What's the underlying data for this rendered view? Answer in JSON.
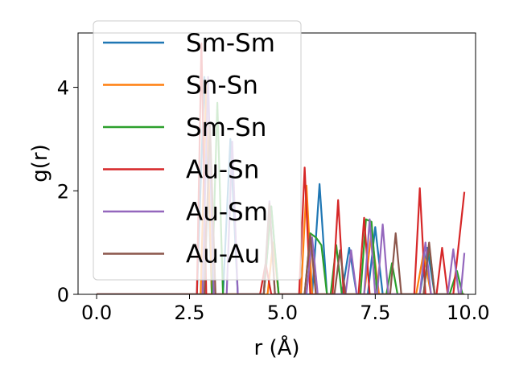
{
  "chart_data": {
    "type": "line",
    "xlabel": "r (Å)",
    "ylabel": "g(r)",
    "xlim": [
      -0.5,
      10.2
    ],
    "ylim": [
      0,
      5.05
    ],
    "xticks": [
      0.0,
      2.5,
      5.0,
      7.5,
      10.0
    ],
    "xtick_labels": [
      "0.0",
      "2.5",
      "5.0",
      "7.5",
      "10.0"
    ],
    "yticks": [
      0,
      2,
      4
    ],
    "ytick_labels": [
      "0",
      "2",
      "4"
    ],
    "grid": false,
    "legend_position": "top-left",
    "series": [
      {
        "name": "Sm-Sm",
        "color": "#1f77b4",
        "points": [
          [
            0,
            0
          ],
          [
            2.7,
            0
          ],
          [
            2.9,
            4.2
          ],
          [
            3.1,
            0
          ],
          [
            3.4,
            0
          ],
          [
            3.6,
            3.0
          ],
          [
            3.8,
            0
          ],
          [
            4.5,
            0
          ],
          [
            4.7,
            1.7
          ],
          [
            4.9,
            0
          ],
          [
            5.8,
            0
          ],
          [
            6.0,
            2.13
          ],
          [
            6.2,
            0
          ],
          [
            6.6,
            0
          ],
          [
            6.8,
            0.9
          ],
          [
            7.0,
            0
          ],
          [
            7.3,
            0
          ],
          [
            7.5,
            1.3
          ],
          [
            7.7,
            0
          ],
          [
            8.7,
            0
          ],
          [
            8.9,
            0.9
          ],
          [
            9.1,
            0
          ],
          [
            9.9,
            0
          ]
        ]
      },
      {
        "name": "Sn-Sn",
        "color": "#ff7f0e",
        "points": [
          [
            0,
            0
          ],
          [
            2.8,
            0
          ],
          [
            2.95,
            4.1
          ],
          [
            3.1,
            0
          ],
          [
            4.6,
            0
          ],
          [
            4.75,
            1.0
          ],
          [
            4.9,
            0
          ],
          [
            5.5,
            0
          ],
          [
            5.65,
            2.1
          ],
          [
            5.8,
            0
          ],
          [
            7.2,
            0
          ],
          [
            7.4,
            1.2
          ],
          [
            7.6,
            0
          ],
          [
            8.6,
            0
          ],
          [
            8.8,
            0.8
          ],
          [
            9.0,
            0
          ],
          [
            9.9,
            0
          ]
        ]
      },
      {
        "name": "Sm-Sn",
        "color": "#2ca02c",
        "points": [
          [
            0,
            0
          ],
          [
            3.1,
            0
          ],
          [
            3.25,
            3.7
          ],
          [
            3.4,
            0
          ],
          [
            4.5,
            0
          ],
          [
            4.7,
            1.7
          ],
          [
            4.9,
            0
          ],
          [
            5.6,
            0
          ],
          [
            5.75,
            1.18
          ],
          [
            5.9,
            1.1
          ],
          [
            6.05,
            0.95
          ],
          [
            6.2,
            0
          ],
          [
            6.3,
            0
          ],
          [
            6.45,
            0.95
          ],
          [
            6.6,
            0
          ],
          [
            7.1,
            0
          ],
          [
            7.25,
            1.45
          ],
          [
            7.4,
            1.4
          ],
          [
            7.55,
            0
          ],
          [
            7.8,
            0
          ],
          [
            7.95,
            0.6
          ],
          [
            8.1,
            0
          ],
          [
            8.8,
            0
          ],
          [
            8.95,
            0.95
          ],
          [
            9.1,
            0
          ],
          [
            9.5,
            0
          ],
          [
            9.7,
            0.45
          ],
          [
            9.85,
            0
          ]
        ]
      },
      {
        "name": "Au-Sn",
        "color": "#d62728",
        "points": [
          [
            0,
            0
          ],
          [
            2.7,
            0
          ],
          [
            2.82,
            4.85
          ],
          [
            2.95,
            0
          ],
          [
            4.4,
            0
          ],
          [
            4.55,
            0.6
          ],
          [
            4.7,
            0
          ],
          [
            5.45,
            0
          ],
          [
            5.6,
            2.45
          ],
          [
            5.75,
            0
          ],
          [
            6.35,
            0
          ],
          [
            6.5,
            1.82
          ],
          [
            6.65,
            0
          ],
          [
            7.05,
            0
          ],
          [
            7.2,
            1.48
          ],
          [
            7.35,
            0
          ],
          [
            8.55,
            0
          ],
          [
            8.7,
            2.05
          ],
          [
            8.85,
            0
          ],
          [
            9.15,
            0
          ],
          [
            9.3,
            0.9
          ],
          [
            9.45,
            0
          ],
          [
            9.6,
            0
          ],
          [
            9.9,
            1.98
          ]
        ]
      },
      {
        "name": "Au-Sm",
        "color": "#9467bd",
        "points": [
          [
            0,
            0
          ],
          [
            2.85,
            0
          ],
          [
            3.0,
            4.2
          ],
          [
            3.15,
            0
          ],
          [
            3.5,
            0
          ],
          [
            3.65,
            2.95
          ],
          [
            3.8,
            0
          ],
          [
            4.5,
            0
          ],
          [
            4.65,
            1.8
          ],
          [
            4.8,
            0
          ],
          [
            5.65,
            0
          ],
          [
            5.8,
            1.1
          ],
          [
            5.95,
            0
          ],
          [
            6.7,
            0
          ],
          [
            6.85,
            0.85
          ],
          [
            7.0,
            0
          ],
          [
            7.2,
            0
          ],
          [
            7.35,
            1.45
          ],
          [
            7.5,
            0
          ],
          [
            7.55,
            0
          ],
          [
            7.7,
            1.35
          ],
          [
            7.85,
            0
          ],
          [
            8.7,
            0
          ],
          [
            8.85,
            1.0
          ],
          [
            9.0,
            0
          ],
          [
            9.45,
            0
          ],
          [
            9.6,
            0.87
          ],
          [
            9.75,
            0
          ],
          [
            9.8,
            0
          ],
          [
            9.9,
            0.8
          ]
        ]
      },
      {
        "name": "Au-Au",
        "color": "#8c564b",
        "points": [
          [
            0,
            0
          ],
          [
            2.9,
            0
          ],
          [
            3.05,
            3.3
          ],
          [
            3.2,
            0
          ],
          [
            4.5,
            0
          ],
          [
            4.65,
            1.75
          ],
          [
            4.8,
            0
          ],
          [
            5.6,
            0
          ],
          [
            5.75,
            1.15
          ],
          [
            5.9,
            0
          ],
          [
            6.4,
            0
          ],
          [
            6.55,
            0.85
          ],
          [
            6.7,
            0
          ],
          [
            7.9,
            0
          ],
          [
            8.05,
            1.18
          ],
          [
            8.2,
            0
          ],
          [
            8.8,
            0
          ],
          [
            8.95,
            1.0
          ],
          [
            9.1,
            0
          ],
          [
            9.9,
            0
          ]
        ]
      }
    ]
  }
}
